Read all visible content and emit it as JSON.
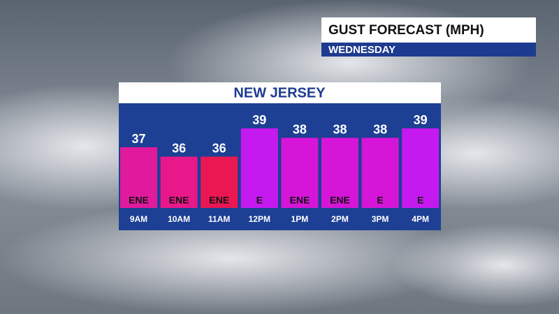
{
  "header": {
    "title": "GUST FORECAST (MPH)",
    "subtitle": "WEDNESDAY"
  },
  "chart_data": {
    "type": "bar",
    "title": "NEW JERSEY",
    "categories": [
      "9AM",
      "10AM",
      "11AM",
      "12PM",
      "1PM",
      "2PM",
      "3PM",
      "4PM"
    ],
    "values": [
      37,
      36,
      36,
      39,
      38,
      38,
      38,
      39
    ],
    "directions": [
      "ENE",
      "ENE",
      "ENE",
      "E",
      "ENE",
      "ENE",
      "E",
      "E"
    ],
    "colors": [
      "#e01a9c",
      "#e8188a",
      "#ea1752",
      "#c41af0",
      "#d516d8",
      "#d516d8",
      "#d516d8",
      "#c41af0"
    ]
  }
}
